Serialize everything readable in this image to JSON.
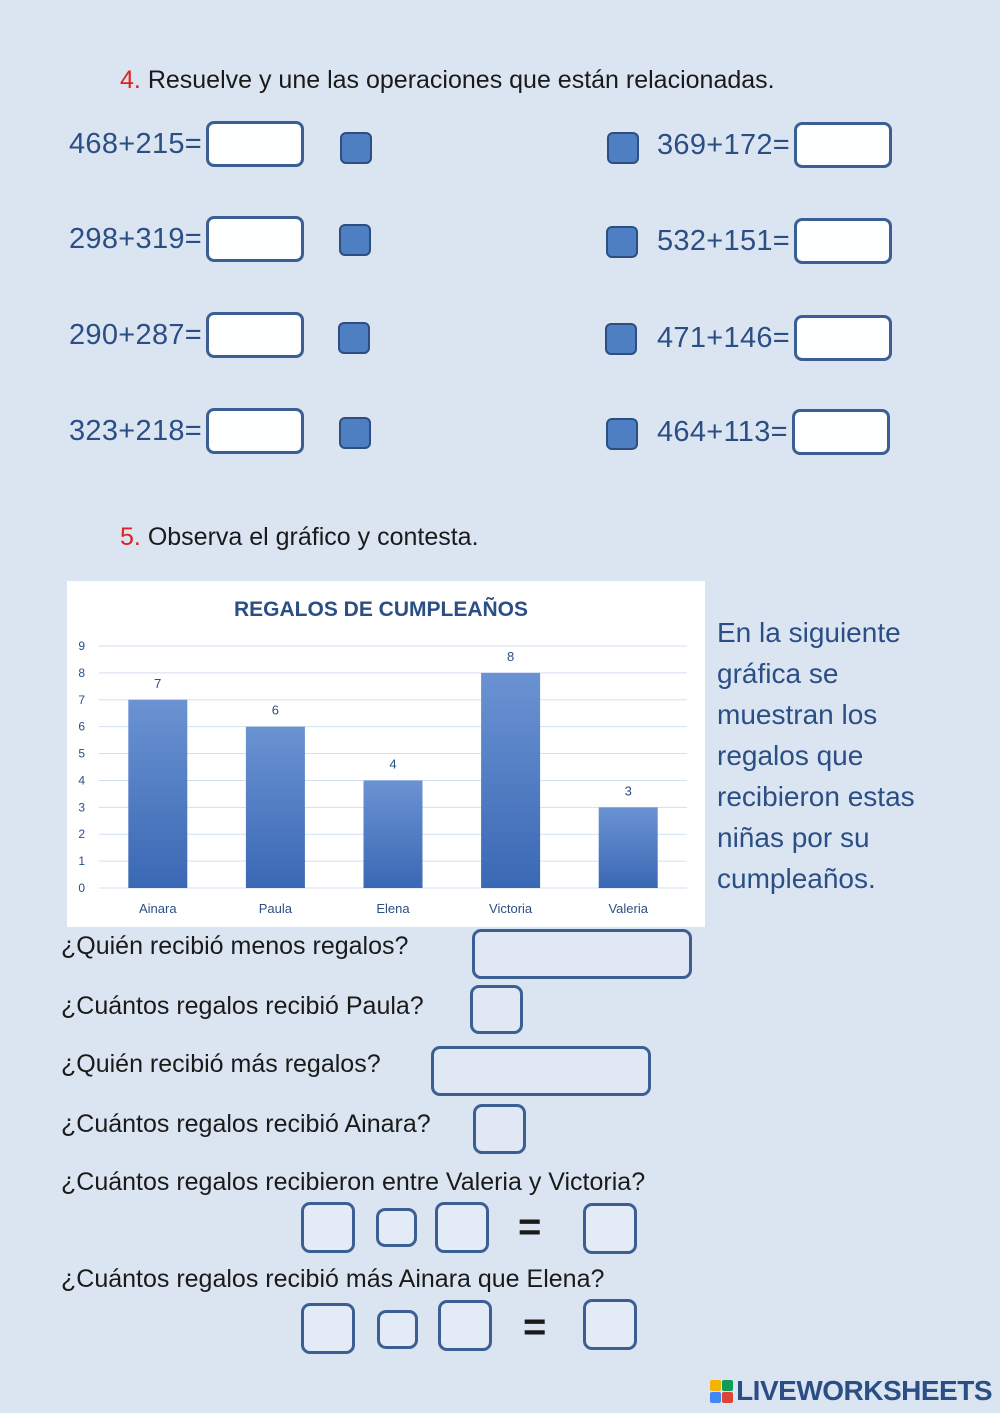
{
  "exercise4": {
    "number": "4.",
    "instruction": "Resuelve y une las operaciones que están relacionadas.",
    "left_ops": [
      "468+215=",
      "298+319=",
      "290+287=",
      "323+218="
    ],
    "right_ops": [
      "369+172=",
      "532+151=",
      "471+146=",
      "464+113="
    ]
  },
  "exercise5": {
    "number": "5.",
    "instruction": "Observa el gráfico y contesta.",
    "side_text": "En la siguiente gráfica se muestran los regalos que recibieron estas niñas por su cumpleaños.",
    "questions": [
      "¿Quién recibió menos regalos?",
      "¿Cuántos regalos recibió Paula?",
      "¿Quién recibió más regalos?",
      "¿Cuántos regalos recibió Ainara?",
      "¿Cuántos regalos recibieron entre Valeria y Victoria?",
      "¿Cuántos regalos recibió más Ainara que Elena?"
    ],
    "equals": "="
  },
  "chart_data": {
    "type": "bar",
    "title": "REGALOS DE CUMPLEAÑOS",
    "categories": [
      "Ainara",
      "Paula",
      "Elena",
      "Victoria",
      "Valeria"
    ],
    "values": [
      7,
      6,
      4,
      8,
      3
    ],
    "ylim": [
      0,
      9
    ],
    "yticks": [
      "0",
      "1",
      "2",
      "3",
      "4",
      "5",
      "6",
      "7",
      "8",
      "9"
    ],
    "grid": true,
    "data_labels": true,
    "bar_color": "#4472c4"
  },
  "brand": {
    "text": "LIVEWORKSHEETS",
    "logo_letters": [
      "L",
      "W"
    ]
  },
  "colors": {
    "accent_number": "#e02020",
    "ink_blue": "#2b4f85"
  }
}
